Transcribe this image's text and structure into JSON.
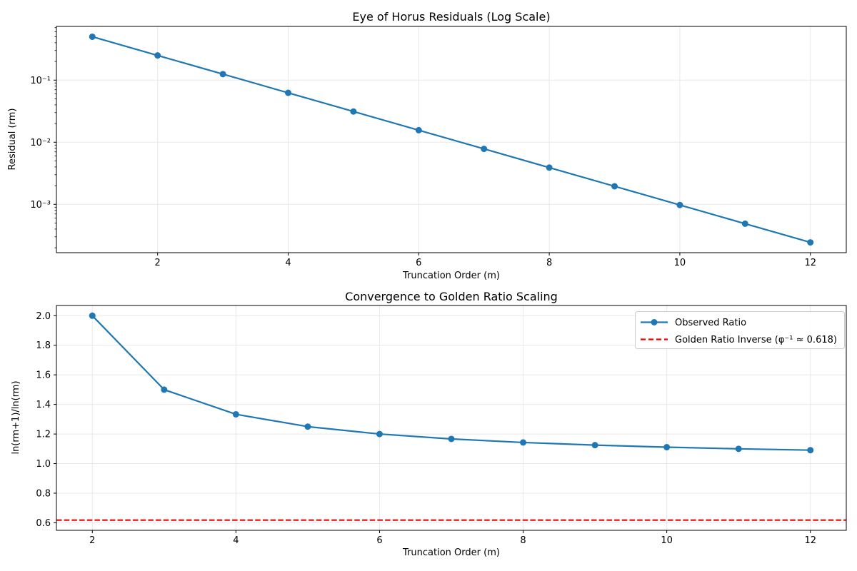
{
  "figure": {
    "background": "#ffffff",
    "series_blue": "#1f77b4",
    "reference_red": "#ee0000",
    "grid_color": "#e8e8e8",
    "legend_border": "#cccccc"
  },
  "chart_data": [
    {
      "type": "line",
      "title": "Eye of Horus Residuals (Log Scale)",
      "xlabel": "Truncation Order (m)",
      "ylabel": "Residual (rm)",
      "yscale": "log",
      "grid": true,
      "x": [
        1,
        2,
        3,
        4,
        5,
        6,
        7,
        8,
        9,
        10,
        11,
        12
      ],
      "y": [
        0.5,
        0.25,
        0.125,
        0.0625,
        0.03125,
        0.015625,
        0.0078125,
        0.00390625,
        0.001953125,
        0.0009765625,
        0.00048828125,
        0.000244140625
      ],
      "xlim": [
        0.45,
        12.55
      ],
      "ylim": [
        0.000167,
        0.733
      ],
      "ylim_log10": [
        -3.778,
        -0.135
      ],
      "xticks": [
        2,
        4,
        6,
        8,
        10,
        12
      ],
      "xtick_labels": [
        "2",
        "4",
        "6",
        "8",
        "10",
        "12"
      ],
      "ytick_values": [
        0.1,
        0.01,
        0.001
      ],
      "ytick_labels": [
        "10⁻¹",
        "10⁻²",
        "10⁻³"
      ],
      "marker": "circle",
      "line_style": "solid"
    },
    {
      "type": "line",
      "title": "Convergence to Golden Ratio Scaling",
      "xlabel": "Truncation Order (m)",
      "ylabel": "ln(rm+1)/ln(rm)",
      "yscale": "linear",
      "grid": true,
      "x": [
        2,
        3,
        4,
        5,
        6,
        7,
        8,
        9,
        10,
        11,
        12
      ],
      "y": [
        2.0,
        1.5,
        1.3333,
        1.25,
        1.2,
        1.1667,
        1.1429,
        1.125,
        1.1111,
        1.1,
        1.0909
      ],
      "reference_line": {
        "value": 0.618,
        "style": "dashed",
        "label": "Golden Ratio Inverse (φ⁻¹ ≈ 0.618)"
      },
      "xlim": [
        1.5,
        12.5
      ],
      "ylim": [
        0.549,
        2.069
      ],
      "xticks": [
        2,
        4,
        6,
        8,
        10,
        12
      ],
      "xtick_labels": [
        "2",
        "4",
        "6",
        "8",
        "10",
        "12"
      ],
      "ytick_values": [
        0.6,
        0.8,
        1.0,
        1.2,
        1.4,
        1.6,
        1.8,
        2.0
      ],
      "ytick_labels": [
        "0.6",
        "0.8",
        "1.0",
        "1.2",
        "1.4",
        "1.6",
        "1.8",
        "2.0"
      ],
      "marker": "circle",
      "line_style": "solid",
      "legend": {
        "position": "upper right",
        "entries": [
          "Observed Ratio",
          "Golden Ratio Inverse (φ⁻¹ ≈ 0.618)"
        ]
      }
    }
  ]
}
